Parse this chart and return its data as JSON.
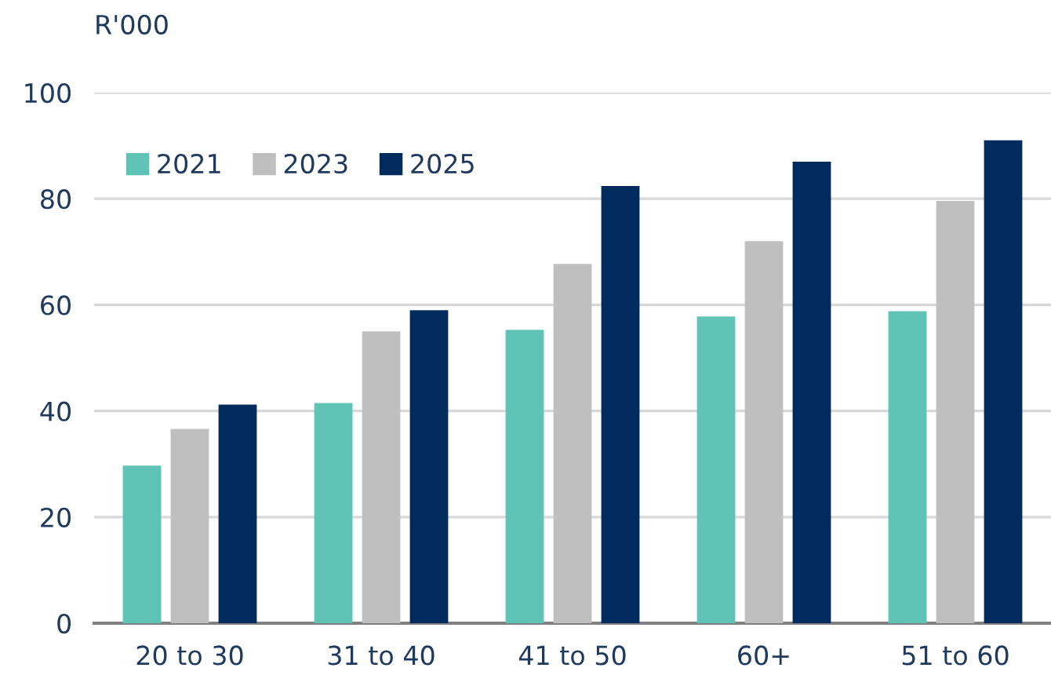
{
  "chart_data": {
    "type": "bar",
    "ylabel": "R'000",
    "categories": [
      "20 to 30",
      "31 to 40",
      "41 to 50",
      "60+",
      "51 to 60"
    ],
    "series": [
      {
        "name": "2021",
        "color": "#5fc3b6",
        "values": [
          29.7,
          41.5,
          55.3,
          57.8,
          58.8
        ]
      },
      {
        "name": "2023",
        "color": "#bfbfbf",
        "values": [
          36.6,
          55,
          67.7,
          72,
          79.6
        ]
      },
      {
        "name": "2025",
        "color": "#002b5c",
        "values": [
          41.2,
          59,
          82.4,
          87,
          91
        ]
      }
    ],
    "ylim": [
      0,
      100
    ],
    "yticks": [
      0,
      20,
      40,
      60,
      80,
      100
    ],
    "grid": "y",
    "legend": "top left"
  }
}
